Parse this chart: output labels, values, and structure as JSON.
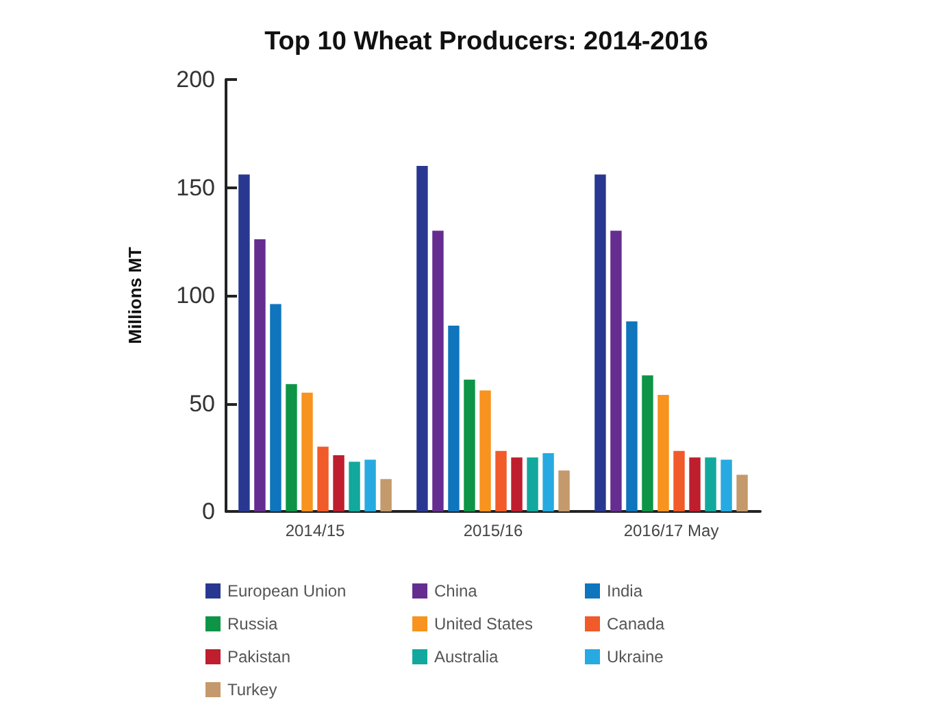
{
  "chart_data": {
    "type": "bar",
    "title": "Top 10 Wheat Producers: 2014-2016",
    "ylabel": "Millions MT",
    "categories": [
      "2014/15",
      "2015/16",
      "2016/17 May"
    ],
    "series": [
      {
        "name": "European Union",
        "color": "#283891",
        "values": [
          156,
          160,
          156
        ]
      },
      {
        "name": "China",
        "color": "#662d91",
        "values": [
          126,
          130,
          130
        ]
      },
      {
        "name": "India",
        "color": "#0f75bc",
        "values": [
          96,
          86,
          88
        ]
      },
      {
        "name": "Russia",
        "color": "#0e9447",
        "values": [
          59,
          61,
          63
        ]
      },
      {
        "name": "United States",
        "color": "#f7931e",
        "values": [
          55,
          56,
          54
        ]
      },
      {
        "name": "Canada",
        "color": "#f15a29",
        "values": [
          30,
          28,
          28
        ]
      },
      {
        "name": "Pakistan",
        "color": "#be1e2d",
        "values": [
          26,
          25,
          25
        ]
      },
      {
        "name": "Australia",
        "color": "#12a89d",
        "values": [
          23,
          25,
          25
        ]
      },
      {
        "name": "Ukraine",
        "color": "#27aae1",
        "values": [
          24,
          27,
          24
        ]
      },
      {
        "name": "Turkey",
        "color": "#c49a6c",
        "values": [
          15,
          19,
          17
        ]
      }
    ],
    "ylim": [
      0,
      200
    ],
    "yticks": [
      0,
      50,
      100,
      150,
      200
    ],
    "grid": false,
    "legend": "bottom"
  }
}
